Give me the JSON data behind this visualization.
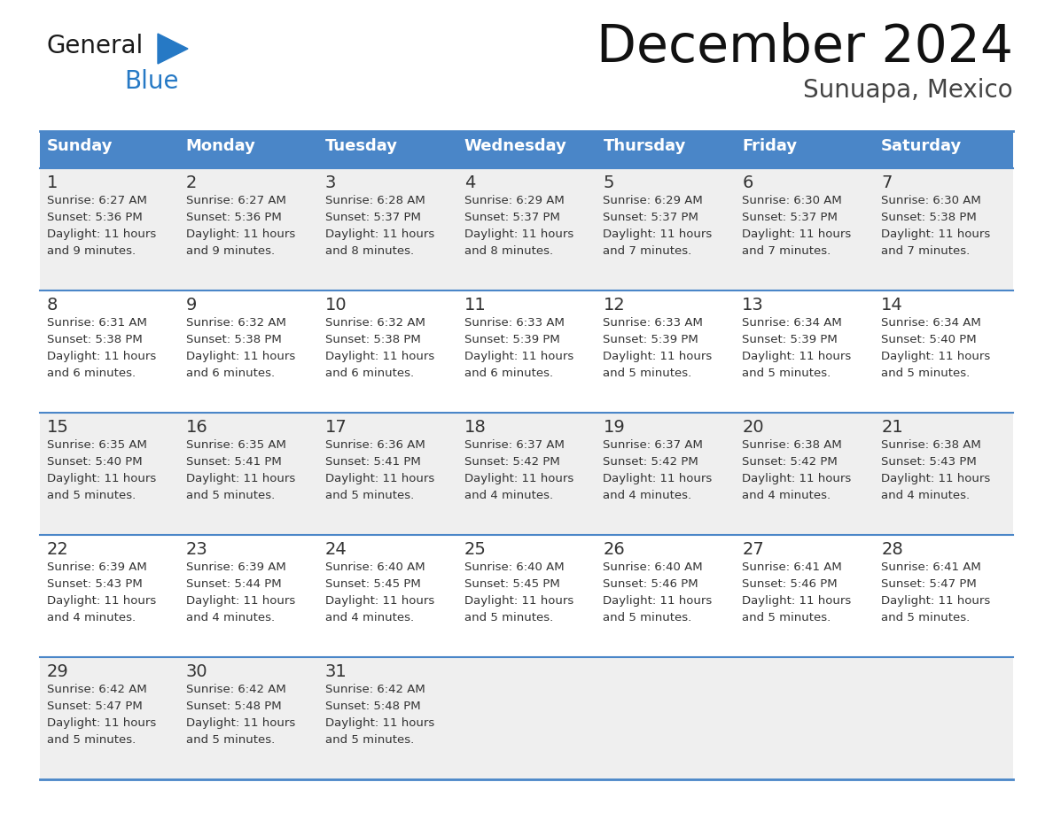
{
  "title": "December 2024",
  "subtitle": "Sunuapa, Mexico",
  "header_bg": "#4a86c8",
  "header_text_color": "#ffffff",
  "cell_bg_light": "#efefef",
  "cell_bg_white": "#ffffff",
  "day_text_color": "#333333",
  "content_text_color": "#333333",
  "border_color": "#4a86c8",
  "days_of_week": [
    "Sunday",
    "Monday",
    "Tuesday",
    "Wednesday",
    "Thursday",
    "Friday",
    "Saturday"
  ],
  "calendar_data": [
    [
      {
        "day": 1,
        "sunrise": "6:27 AM",
        "sunset": "5:36 PM",
        "daylight_hours": 11,
        "daylight_minutes": 9
      },
      {
        "day": 2,
        "sunrise": "6:27 AM",
        "sunset": "5:36 PM",
        "daylight_hours": 11,
        "daylight_minutes": 9
      },
      {
        "day": 3,
        "sunrise": "6:28 AM",
        "sunset": "5:37 PM",
        "daylight_hours": 11,
        "daylight_minutes": 8
      },
      {
        "day": 4,
        "sunrise": "6:29 AM",
        "sunset": "5:37 PM",
        "daylight_hours": 11,
        "daylight_minutes": 8
      },
      {
        "day": 5,
        "sunrise": "6:29 AM",
        "sunset": "5:37 PM",
        "daylight_hours": 11,
        "daylight_minutes": 7
      },
      {
        "day": 6,
        "sunrise": "6:30 AM",
        "sunset": "5:37 PM",
        "daylight_hours": 11,
        "daylight_minutes": 7
      },
      {
        "day": 7,
        "sunrise": "6:30 AM",
        "sunset": "5:38 PM",
        "daylight_hours": 11,
        "daylight_minutes": 7
      }
    ],
    [
      {
        "day": 8,
        "sunrise": "6:31 AM",
        "sunset": "5:38 PM",
        "daylight_hours": 11,
        "daylight_minutes": 6
      },
      {
        "day": 9,
        "sunrise": "6:32 AM",
        "sunset": "5:38 PM",
        "daylight_hours": 11,
        "daylight_minutes": 6
      },
      {
        "day": 10,
        "sunrise": "6:32 AM",
        "sunset": "5:38 PM",
        "daylight_hours": 11,
        "daylight_minutes": 6
      },
      {
        "day": 11,
        "sunrise": "6:33 AM",
        "sunset": "5:39 PM",
        "daylight_hours": 11,
        "daylight_minutes": 6
      },
      {
        "day": 12,
        "sunrise": "6:33 AM",
        "sunset": "5:39 PM",
        "daylight_hours": 11,
        "daylight_minutes": 5
      },
      {
        "day": 13,
        "sunrise": "6:34 AM",
        "sunset": "5:39 PM",
        "daylight_hours": 11,
        "daylight_minutes": 5
      },
      {
        "day": 14,
        "sunrise": "6:34 AM",
        "sunset": "5:40 PM",
        "daylight_hours": 11,
        "daylight_minutes": 5
      }
    ],
    [
      {
        "day": 15,
        "sunrise": "6:35 AM",
        "sunset": "5:40 PM",
        "daylight_hours": 11,
        "daylight_minutes": 5
      },
      {
        "day": 16,
        "sunrise": "6:35 AM",
        "sunset": "5:41 PM",
        "daylight_hours": 11,
        "daylight_minutes": 5
      },
      {
        "day": 17,
        "sunrise": "6:36 AM",
        "sunset": "5:41 PM",
        "daylight_hours": 11,
        "daylight_minutes": 5
      },
      {
        "day": 18,
        "sunrise": "6:37 AM",
        "sunset": "5:42 PM",
        "daylight_hours": 11,
        "daylight_minutes": 4
      },
      {
        "day": 19,
        "sunrise": "6:37 AM",
        "sunset": "5:42 PM",
        "daylight_hours": 11,
        "daylight_minutes": 4
      },
      {
        "day": 20,
        "sunrise": "6:38 AM",
        "sunset": "5:42 PM",
        "daylight_hours": 11,
        "daylight_minutes": 4
      },
      {
        "day": 21,
        "sunrise": "6:38 AM",
        "sunset": "5:43 PM",
        "daylight_hours": 11,
        "daylight_minutes": 4
      }
    ],
    [
      {
        "day": 22,
        "sunrise": "6:39 AM",
        "sunset": "5:43 PM",
        "daylight_hours": 11,
        "daylight_minutes": 4
      },
      {
        "day": 23,
        "sunrise": "6:39 AM",
        "sunset": "5:44 PM",
        "daylight_hours": 11,
        "daylight_minutes": 4
      },
      {
        "day": 24,
        "sunrise": "6:40 AM",
        "sunset": "5:45 PM",
        "daylight_hours": 11,
        "daylight_minutes": 4
      },
      {
        "day": 25,
        "sunrise": "6:40 AM",
        "sunset": "5:45 PM",
        "daylight_hours": 11,
        "daylight_minutes": 5
      },
      {
        "day": 26,
        "sunrise": "6:40 AM",
        "sunset": "5:46 PM",
        "daylight_hours": 11,
        "daylight_minutes": 5
      },
      {
        "day": 27,
        "sunrise": "6:41 AM",
        "sunset": "5:46 PM",
        "daylight_hours": 11,
        "daylight_minutes": 5
      },
      {
        "day": 28,
        "sunrise": "6:41 AM",
        "sunset": "5:47 PM",
        "daylight_hours": 11,
        "daylight_minutes": 5
      }
    ],
    [
      {
        "day": 29,
        "sunrise": "6:42 AM",
        "sunset": "5:47 PM",
        "daylight_hours": 11,
        "daylight_minutes": 5
      },
      {
        "day": 30,
        "sunrise": "6:42 AM",
        "sunset": "5:48 PM",
        "daylight_hours": 11,
        "daylight_minutes": 5
      },
      {
        "day": 31,
        "sunrise": "6:42 AM",
        "sunset": "5:48 PM",
        "daylight_hours": 11,
        "daylight_minutes": 5
      },
      null,
      null,
      null,
      null
    ]
  ],
  "logo_general_color": "#1a1a1a",
  "logo_blue_color": "#2679c5",
  "logo_triangle_color": "#2679c5"
}
